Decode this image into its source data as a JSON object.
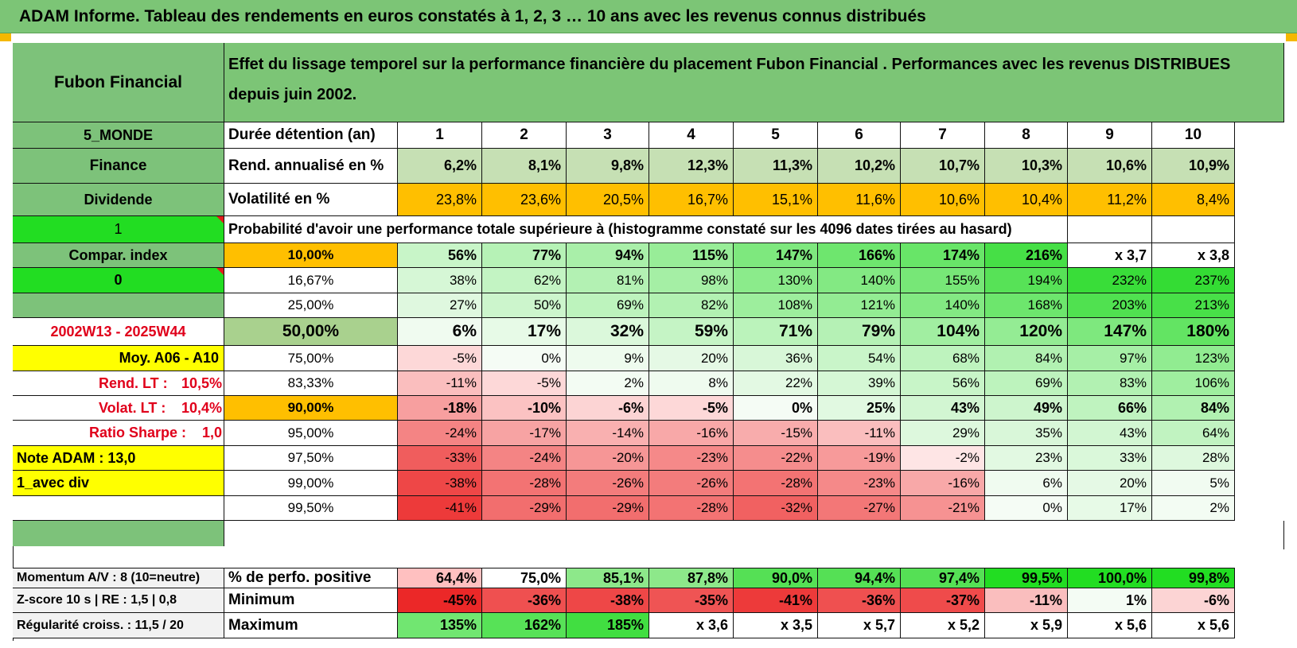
{
  "header": {
    "title": "ADAM Informe. Tableau des rendements en euros constatés à 1, 2, 3 … 10 ans avec les revenus connus distribués"
  },
  "colors": {
    "header_green": "#7cc576",
    "label_green": "#7dc27a",
    "bright_green": "#22dd22",
    "orange": "#ffbf00",
    "yellow": "#ffff00",
    "red_text": "#e0001b",
    "bold_row_green": "#a9d18e",
    "light_green_cell": "#c6e0b4"
  },
  "main": {
    "fund_name": "Fubon Financial",
    "description": "Effet du lissage temporel sur la performance financière du placement Fubon Financial . Performances avec les revenus DISTRIBUES depuis juin 2002.",
    "region": "5_MONDE",
    "duration_label": "Durée détention (an)",
    "years": [
      "1",
      "2",
      "3",
      "4",
      "5",
      "6",
      "7",
      "8",
      "9",
      "10"
    ],
    "sector": "Finance",
    "return_label": "Rend. annualisé en %",
    "returns": [
      "6,2%",
      "8,1%",
      "9,8%",
      "12,3%",
      "11,3%",
      "10,2%",
      "10,7%",
      "10,3%",
      "10,6%",
      "10,9%"
    ],
    "style": "Dividende",
    "volatility_label": "Volatilité en %",
    "volatilities": [
      "23,8%",
      "23,6%",
      "20,5%",
      "16,7%",
      "15,1%",
      "11,6%",
      "10,6%",
      "10,4%",
      "11,2%",
      "8,4%"
    ],
    "prob_flag": "1",
    "prob_title": "Probabilité d'avoir une performance totale supérieure à (histogramme constaté sur les 4096 dates tirées au hasard)",
    "compar_label": "Compar. index",
    "compar_flag": "0",
    "period": "2002W13 - 2025W44",
    "avg_label": "Moy. A06 - A10",
    "lt_return_label": "Rend. LT :",
    "lt_return_value": "10,5%",
    "lt_vol_label": "Volat. LT :",
    "lt_vol_value": "10,4%",
    "sharpe_label": "Ratio Sharpe :",
    "sharpe_value": "1,0",
    "note_label": "Note ADAM : 13,0",
    "div_label": "1_avec div",
    "quantiles": [
      {
        "p": "10,00%",
        "values": [
          "56%",
          "77%",
          "94%",
          "115%",
          "147%",
          "166%",
          "174%",
          "216%",
          "x 3,7",
          "x 3,8"
        ]
      },
      {
        "p": "16,67%",
        "values": [
          "38%",
          "62%",
          "81%",
          "98%",
          "130%",
          "140%",
          "155%",
          "194%",
          "232%",
          "237%"
        ]
      },
      {
        "p": "25,00%",
        "values": [
          "27%",
          "50%",
          "69%",
          "82%",
          "108%",
          "121%",
          "140%",
          "168%",
          "203%",
          "213%"
        ]
      },
      {
        "p": "50,00%",
        "values": [
          "6%",
          "17%",
          "32%",
          "59%",
          "71%",
          "79%",
          "104%",
          "120%",
          "147%",
          "180%"
        ]
      },
      {
        "p": "75,00%",
        "values": [
          "-5%",
          "0%",
          "9%",
          "20%",
          "36%",
          "54%",
          "68%",
          "84%",
          "97%",
          "123%"
        ]
      },
      {
        "p": "83,33%",
        "values": [
          "-11%",
          "-5%",
          "2%",
          "8%",
          "22%",
          "39%",
          "56%",
          "69%",
          "83%",
          "106%"
        ]
      },
      {
        "p": "90,00%",
        "values": [
          "-18%",
          "-10%",
          "-6%",
          "-5%",
          "0%",
          "25%",
          "43%",
          "49%",
          "66%",
          "84%"
        ]
      },
      {
        "p": "95,00%",
        "values": [
          "-24%",
          "-17%",
          "-14%",
          "-16%",
          "-15%",
          "-11%",
          "29%",
          "35%",
          "43%",
          "64%"
        ]
      },
      {
        "p": "97,50%",
        "values": [
          "-33%",
          "-24%",
          "-20%",
          "-23%",
          "-22%",
          "-19%",
          "-2%",
          "23%",
          "33%",
          "28%"
        ]
      },
      {
        "p": "99,00%",
        "values": [
          "-38%",
          "-28%",
          "-26%",
          "-26%",
          "-28%",
          "-23%",
          "-16%",
          "6%",
          "20%",
          "5%"
        ]
      },
      {
        "p": "99,50%",
        "values": [
          "-41%",
          "-29%",
          "-29%",
          "-28%",
          "-32%",
          "-27%",
          "-21%",
          "0%",
          "17%",
          "2%"
        ]
      }
    ],
    "bottom_rows": [
      {
        "side": "Momentum A/V : 8 (10=neutre)",
        "label": "% de perfo. positive",
        "values": [
          "64,4%",
          "75,0%",
          "85,1%",
          "87,8%",
          "90,0%",
          "94,4%",
          "97,4%",
          "99,5%",
          "100,0%",
          "99,8%"
        ]
      },
      {
        "side": "Z-score 10 s | RE : 1,5 | 0,8",
        "label": "Minimum",
        "values": [
          "-45%",
          "-36%",
          "-38%",
          "-35%",
          "-41%",
          "-36%",
          "-37%",
          "-11%",
          "1%",
          "-6%"
        ]
      },
      {
        "side": "Régularité croiss. : 11,5 / 20",
        "label": "Maximum",
        "values": [
          "135%",
          "162%",
          "185%",
          "x 3,6",
          "x 3,5",
          "x 5,7",
          "x 5,2",
          "x 5,9",
          "x 5,6",
          "x 5,6"
        ]
      }
    ]
  }
}
